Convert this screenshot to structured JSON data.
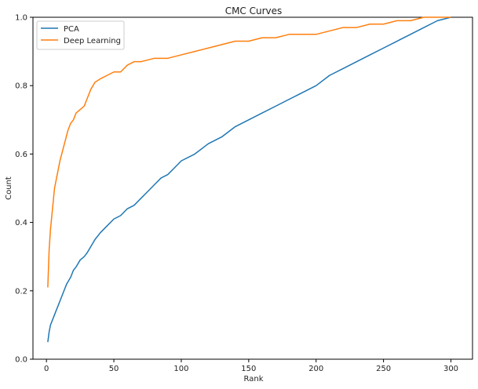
{
  "chart_data": {
    "type": "line",
    "title": "CMC Curves",
    "xlabel": "Rank",
    "ylabel": "Count",
    "xlim": [
      -10,
      316
    ],
    "ylim": [
      0,
      1.0
    ],
    "xticks": [
      0,
      50,
      100,
      150,
      200,
      250,
      300
    ],
    "yticks": [
      0.0,
      0.2,
      0.4,
      0.6,
      0.8,
      1.0
    ],
    "grid": false,
    "legend_position": "top-left",
    "series": [
      {
        "name": "PCA",
        "color": "#1f77b4",
        "x": [
          1,
          2,
          3,
          5,
          7,
          10,
          12,
          15,
          18,
          20,
          22,
          25,
          28,
          30,
          33,
          36,
          40,
          45,
          50,
          55,
          60,
          65,
          70,
          75,
          80,
          85,
          90,
          95,
          100,
          110,
          120,
          130,
          140,
          150,
          160,
          170,
          180,
          190,
          200,
          210,
          220,
          230,
          240,
          250,
          260,
          270,
          280,
          290,
          300
        ],
        "y": [
          0.05,
          0.08,
          0.1,
          0.12,
          0.14,
          0.17,
          0.19,
          0.22,
          0.24,
          0.26,
          0.27,
          0.29,
          0.3,
          0.31,
          0.33,
          0.35,
          0.37,
          0.39,
          0.41,
          0.42,
          0.44,
          0.45,
          0.47,
          0.49,
          0.51,
          0.53,
          0.54,
          0.56,
          0.58,
          0.6,
          0.63,
          0.65,
          0.68,
          0.7,
          0.72,
          0.74,
          0.76,
          0.78,
          0.8,
          0.83,
          0.85,
          0.87,
          0.89,
          0.91,
          0.93,
          0.95,
          0.97,
          0.99,
          1.0
        ]
      },
      {
        "name": "Deep Learning",
        "color": "#ff7f0e",
        "x": [
          1,
          2,
          3,
          4,
          5,
          6,
          8,
          10,
          12,
          14,
          16,
          18,
          20,
          22,
          25,
          28,
          30,
          33,
          36,
          40,
          45,
          50,
          55,
          60,
          65,
          70,
          80,
          90,
          100,
          110,
          120,
          130,
          140,
          150,
          160,
          170,
          180,
          190,
          200,
          210,
          220,
          230,
          240,
          250,
          260,
          270,
          280,
          290,
          300
        ],
        "y": [
          0.21,
          0.32,
          0.38,
          0.42,
          0.46,
          0.5,
          0.54,
          0.58,
          0.61,
          0.64,
          0.67,
          0.69,
          0.7,
          0.72,
          0.73,
          0.74,
          0.76,
          0.79,
          0.81,
          0.82,
          0.83,
          0.84,
          0.84,
          0.86,
          0.87,
          0.87,
          0.88,
          0.88,
          0.89,
          0.9,
          0.91,
          0.92,
          0.93,
          0.93,
          0.94,
          0.94,
          0.95,
          0.95,
          0.95,
          0.96,
          0.97,
          0.97,
          0.98,
          0.98,
          0.99,
          0.99,
          1.0,
          1.0,
          1.0
        ]
      }
    ]
  }
}
